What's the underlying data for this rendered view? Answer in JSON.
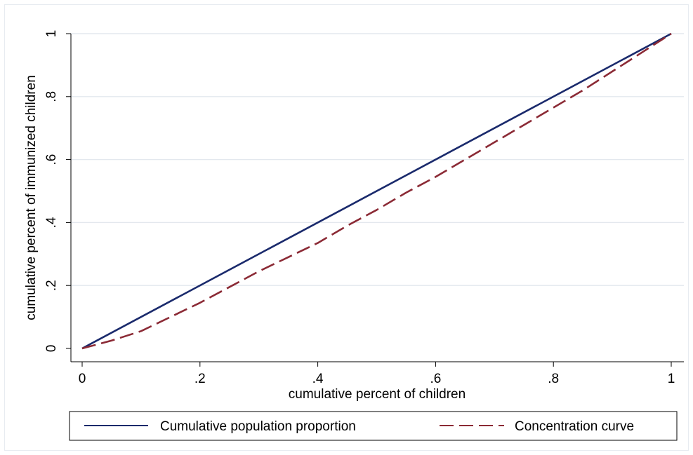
{
  "chart_data": {
    "type": "line",
    "xlabel": "cumulative percent of children",
    "ylabel": "cumulative percent of immunized children",
    "xlim": [
      0,
      1
    ],
    "ylim": [
      0,
      1
    ],
    "x_ticks": [
      0,
      0.2,
      0.4,
      0.6,
      0.8,
      1
    ],
    "x_tick_labels": [
      "0",
      ".2",
      ".4",
      ".6",
      ".8",
      "1"
    ],
    "y_ticks": [
      0,
      0.2,
      0.4,
      0.6,
      0.8,
      1
    ],
    "y_tick_labels": [
      "0",
      ".2",
      ".4",
      ".6",
      ".8",
      "1"
    ],
    "grid": "horizontal",
    "legend_position": "bottom",
    "series": [
      {
        "name": "Cumulative population proportion",
        "color": "#1a2a6c",
        "style": "solid",
        "x": [
          0,
          1
        ],
        "y": [
          0,
          1
        ]
      },
      {
        "name": "Concentration curve",
        "color": "#8b2a35",
        "style": "dashed",
        "x": [
          0,
          0.05,
          0.1,
          0.15,
          0.2,
          0.25,
          0.3,
          0.35,
          0.4,
          0.45,
          0.5,
          0.55,
          0.6,
          0.65,
          0.7,
          0.75,
          0.8,
          0.85,
          0.9,
          0.95,
          1
        ],
        "y": [
          0,
          0.025,
          0.055,
          0.1,
          0.145,
          0.195,
          0.245,
          0.29,
          0.335,
          0.39,
          0.44,
          0.495,
          0.545,
          0.6,
          0.655,
          0.71,
          0.765,
          0.82,
          0.88,
          0.94,
          1
        ]
      }
    ]
  }
}
